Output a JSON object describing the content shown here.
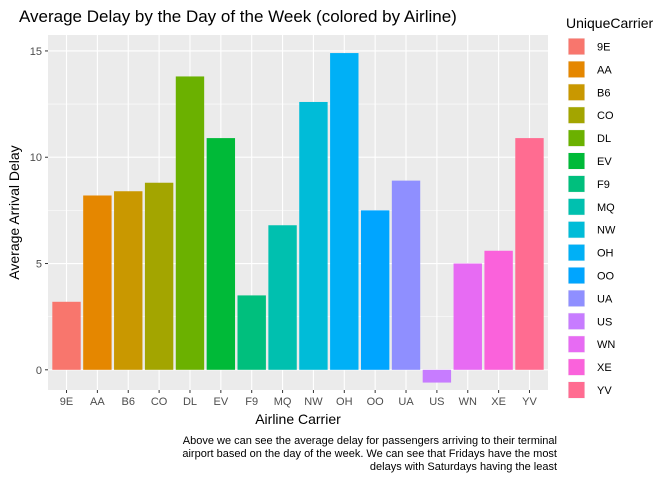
{
  "chart_data": {
    "type": "bar",
    "title": "Average Delay by the Day of the Week (colored by Airline)",
    "xlabel": "Airline Carrier",
    "ylabel": "Average Arrival Delay",
    "categories": [
      "9E",
      "AA",
      "B6",
      "CO",
      "DL",
      "EV",
      "F9",
      "MQ",
      "NW",
      "OH",
      "OO",
      "UA",
      "US",
      "WN",
      "XE",
      "YV"
    ],
    "values": [
      3.2,
      8.2,
      8.4,
      8.8,
      13.8,
      10.9,
      3.5,
      6.8,
      12.6,
      14.9,
      7.5,
      8.9,
      -0.6,
      5.0,
      5.6,
      10.9
    ],
    "colors": [
      "#F8766D",
      "#E58700",
      "#C99800",
      "#A3A500",
      "#6BB100",
      "#00BA38",
      "#00BF7D",
      "#00C0AF",
      "#00BCD8",
      "#00B0F6",
      "#00A5FF",
      "#8F8FFF",
      "#C77CFF",
      "#E76BF3",
      "#FA62DB",
      "#FF6C91"
    ],
    "ylim": [
      -0.95,
      15.75
    ],
    "yticks": [
      0,
      5,
      10,
      15
    ],
    "grid": true,
    "legend": {
      "title": "UniqueCarrier",
      "position": "right",
      "entries": [
        "9E",
        "AA",
        "B6",
        "CO",
        "DL",
        "EV",
        "F9",
        "MQ",
        "NW",
        "OH",
        "OO",
        "UA",
        "US",
        "WN",
        "XE",
        "YV"
      ]
    },
    "caption": [
      "Above we can see the average delay for passengers arriving to their terminal",
      "airport based on the day of the week. We can see that Fridays have the most",
      "delays with Saturdays having the least"
    ]
  }
}
